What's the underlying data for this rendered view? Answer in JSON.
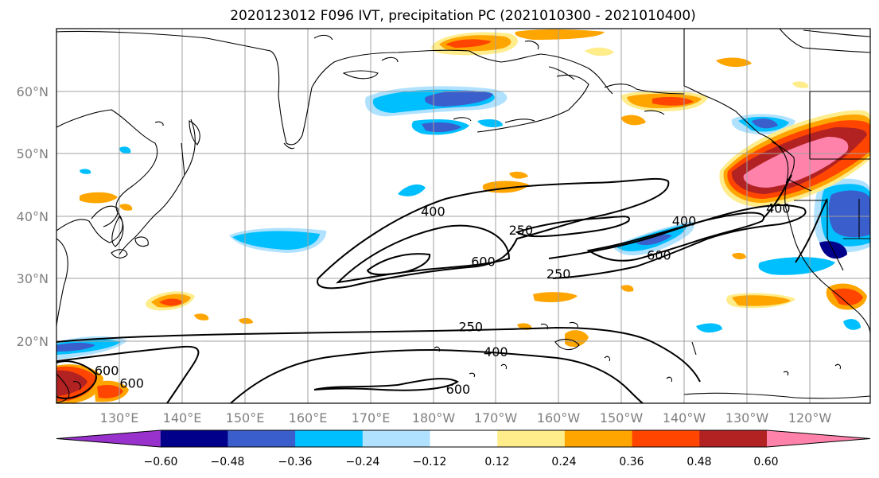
{
  "title": "2020123012 F096 IVT, precipitation PC (2021010300 - 2021010400)",
  "lat_labels": [
    "60°N",
    "50°N",
    "40°N",
    "30°N",
    "20°N"
  ],
  "lon_labels": [
    "130°E",
    "140°E",
    "150°E",
    "160°E",
    "170°E",
    "180°W",
    "170°W",
    "160°W",
    "150°W",
    "140°W",
    "130°W",
    "120°W"
  ],
  "colorbar": {
    "ticks": [
      "−0.60",
      "−0.48",
      "−0.36",
      "−0.24",
      "−0.12",
      "0.12",
      "0.24",
      "0.36",
      "0.48",
      "0.60"
    ],
    "colors": [
      "#9932cc",
      "#00008b",
      "#3a5fcd",
      "#00bfff",
      "#b0e2ff",
      "#ffffff",
      "#ffec8b",
      "#ffa500",
      "#ff4500",
      "#b22222",
      "#ff82ab"
    ]
  },
  "contour_labels": [
    {
      "text": "400",
      "lon": 180,
      "lat": 40
    },
    {
      "text": "250",
      "lon": 166,
      "lat": 37
    },
    {
      "text": "600",
      "lon": 172,
      "lat": 32
    },
    {
      "text": "400",
      "lon": 140,
      "lat": 38.5
    },
    {
      "text": "600",
      "lon": 144,
      "lat": 33
    },
    {
      "text": "250",
      "lon": 160,
      "lat": 30
    },
    {
      "text": "400",
      "lon": 125,
      "lat": 40.5
    },
    {
      "text": "250",
      "lon": 174,
      "lat": 21.5
    },
    {
      "text": "400",
      "lon": 170,
      "lat": 17.5
    },
    {
      "text": "600",
      "lon": 128,
      "lat": 14.5
    },
    {
      "text": "600",
      "lon": 132,
      "lat": 12.5
    },
    {
      "text": "600",
      "lon": 176,
      "lat": 11.5
    }
  ]
}
